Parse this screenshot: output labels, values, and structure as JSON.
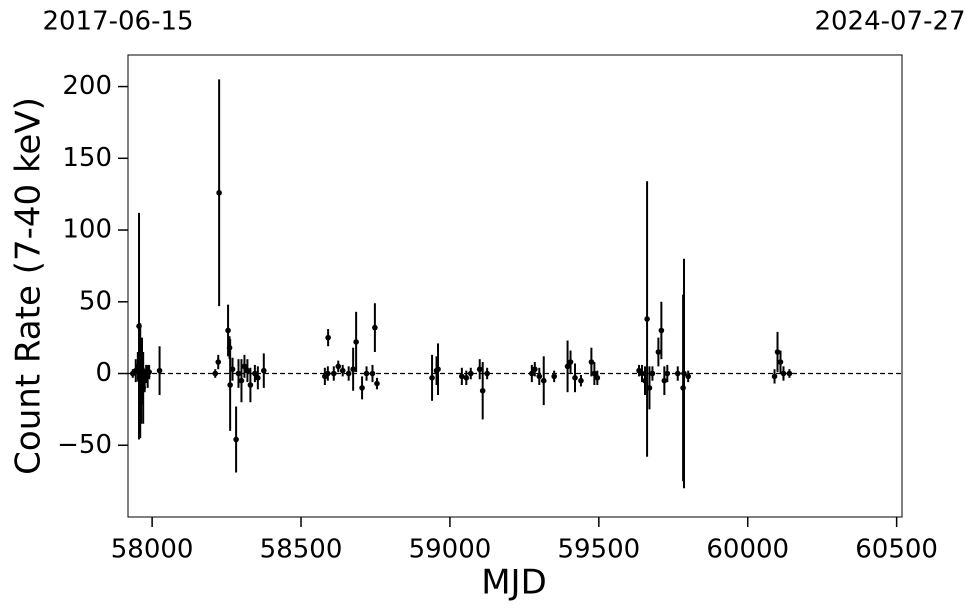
{
  "chart_data": {
    "type": "errorbar",
    "xlabel": "MJD",
    "ylabel": "Count Rate (7-40 keV)",
    "xlim": [
      57919,
      60518
    ],
    "ylim": [
      -100,
      222
    ],
    "xticks": [
      58000,
      58500,
      59000,
      59500,
      60000,
      60500
    ],
    "yticks": [
      {
        "value": -50,
        "label": "−50"
      },
      0,
      50,
      100,
      150,
      200
    ],
    "x2ticks": [
      {
        "value": 57919,
        "label": "2017-06-15"
      },
      {
        "value": 60518,
        "label": "2024-07-27"
      }
    ],
    "hline": 0,
    "series": [
      {
        "color": "#000000",
        "x": [
          57935,
          57945,
          57952,
          57956,
          57960,
          57963,
          57966,
          57970,
          57975,
          57980,
          57985,
          57990,
          58025,
          58212,
          58222,
          58225,
          58255,
          58260,
          58262,
          58270,
          58282,
          58290,
          58300,
          58310,
          58320,
          58330,
          58345,
          58355,
          58375,
          58580,
          58590,
          58591,
          58610,
          58625,
          58640,
          58660,
          58675,
          58685,
          58705,
          58720,
          58740,
          58748,
          58755,
          58940,
          58955,
          58960,
          59040,
          59055,
          59070,
          59100,
          59110,
          59125,
          59275,
          59285,
          59300,
          59315,
          59350,
          59395,
          59405,
          59420,
          59440,
          59475,
          59485,
          59495,
          59635,
          59645,
          59655,
          59662,
          59670,
          59680,
          59700,
          59710,
          59720,
          59730,
          59765,
          59783,
          59786,
          59800,
          60090,
          60100,
          60110,
          60120,
          60140
        ],
        "y": [
          0,
          2,
          5,
          33,
          -5,
          -20,
          3,
          -10,
          -5,
          0,
          -2,
          1,
          2,
          0,
          8,
          126,
          30,
          18,
          -8,
          3,
          -46,
          0,
          -5,
          5,
          2,
          -8,
          0,
          -3,
          2,
          -2,
          0,
          25,
          0,
          5,
          2,
          0,
          3,
          22,
          -10,
          0,
          0,
          32,
          -7,
          -3,
          2,
          3,
          -2,
          -3,
          0,
          3,
          -12,
          0,
          0,
          3,
          -2,
          -5,
          -2,
          5,
          8,
          -3,
          -5,
          8,
          0,
          -3,
          2,
          0,
          -5,
          38,
          -10,
          0,
          15,
          30,
          -5,
          0,
          0,
          -10,
          0,
          -2,
          -2,
          15,
          8,
          0,
          0
        ],
        "yerr": [
          3,
          8,
          10,
          79,
          40,
          15,
          22,
          25,
          8,
          6,
          8,
          5,
          17,
          3,
          5,
          79,
          18,
          8,
          32,
          8,
          23,
          10,
          15,
          8,
          8,
          12,
          6,
          8,
          12,
          6,
          5,
          6,
          5,
          4,
          4,
          5,
          15,
          21,
          8,
          5,
          6,
          17,
          4,
          16,
          10,
          18,
          6,
          5,
          4,
          7,
          20,
          4,
          6,
          5,
          6,
          17,
          4,
          18,
          8,
          10,
          4,
          10,
          8,
          5,
          4,
          6,
          10,
          96,
          15,
          5,
          10,
          20,
          10,
          6,
          5,
          65,
          80,
          4,
          5,
          14,
          8,
          5,
          3
        ]
      }
    ]
  }
}
